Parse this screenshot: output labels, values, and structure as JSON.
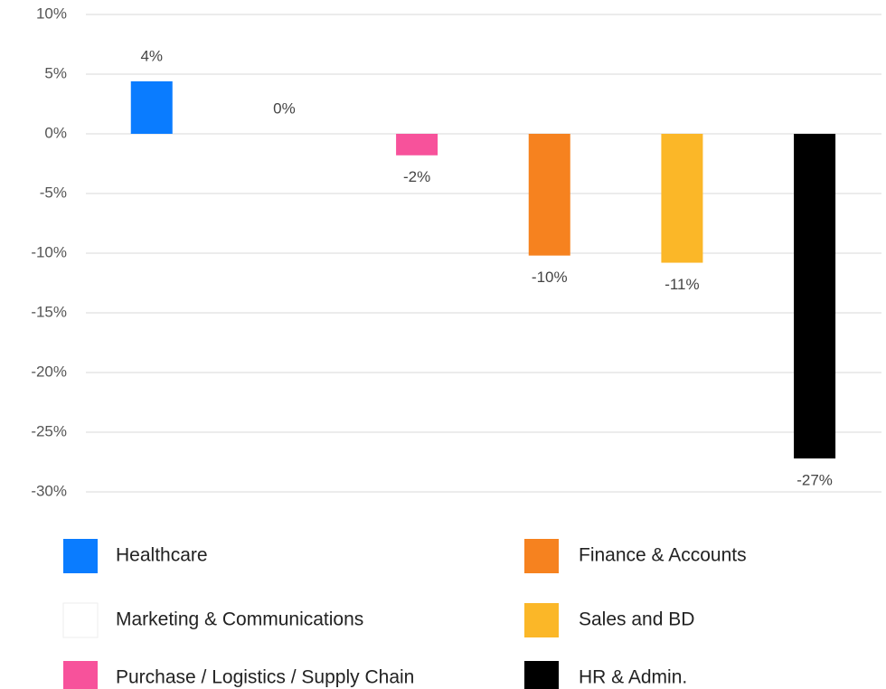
{
  "chart_data": {
    "type": "bar",
    "categories": [
      "Healthcare",
      "Marketing & Communications",
      "Purchase / Logistics / Supply Chain",
      "Finance & Accounts",
      "Sales and BD",
      "HR & Admin."
    ],
    "values": [
      4.4,
      0,
      -1.8,
      -10.2,
      -10.8,
      -27.2
    ],
    "value_labels": [
      "4%",
      "0%",
      "-2%",
      "-10%",
      "-11%",
      "-27%"
    ],
    "colors": [
      "#0a7cff",
      "#ffffff",
      "#f7529b",
      "#f6821f",
      "#fbb728",
      "#000000"
    ],
    "ylim": [
      -30,
      10
    ],
    "yticks": [
      {
        "value": -30,
        "label": "-30%"
      },
      {
        "value": -25,
        "label": "-25%"
      },
      {
        "value": -20,
        "label": "-20%"
      },
      {
        "value": -15,
        "label": "-15%"
      },
      {
        "value": -10,
        "label": "-10%"
      },
      {
        "value": -5,
        "label": "-5%"
      },
      {
        "value": 0,
        "label": "0%"
      },
      {
        "value": 5,
        "label": "5%"
      },
      {
        "value": 10,
        "label": "10%"
      }
    ],
    "grid": true
  }
}
